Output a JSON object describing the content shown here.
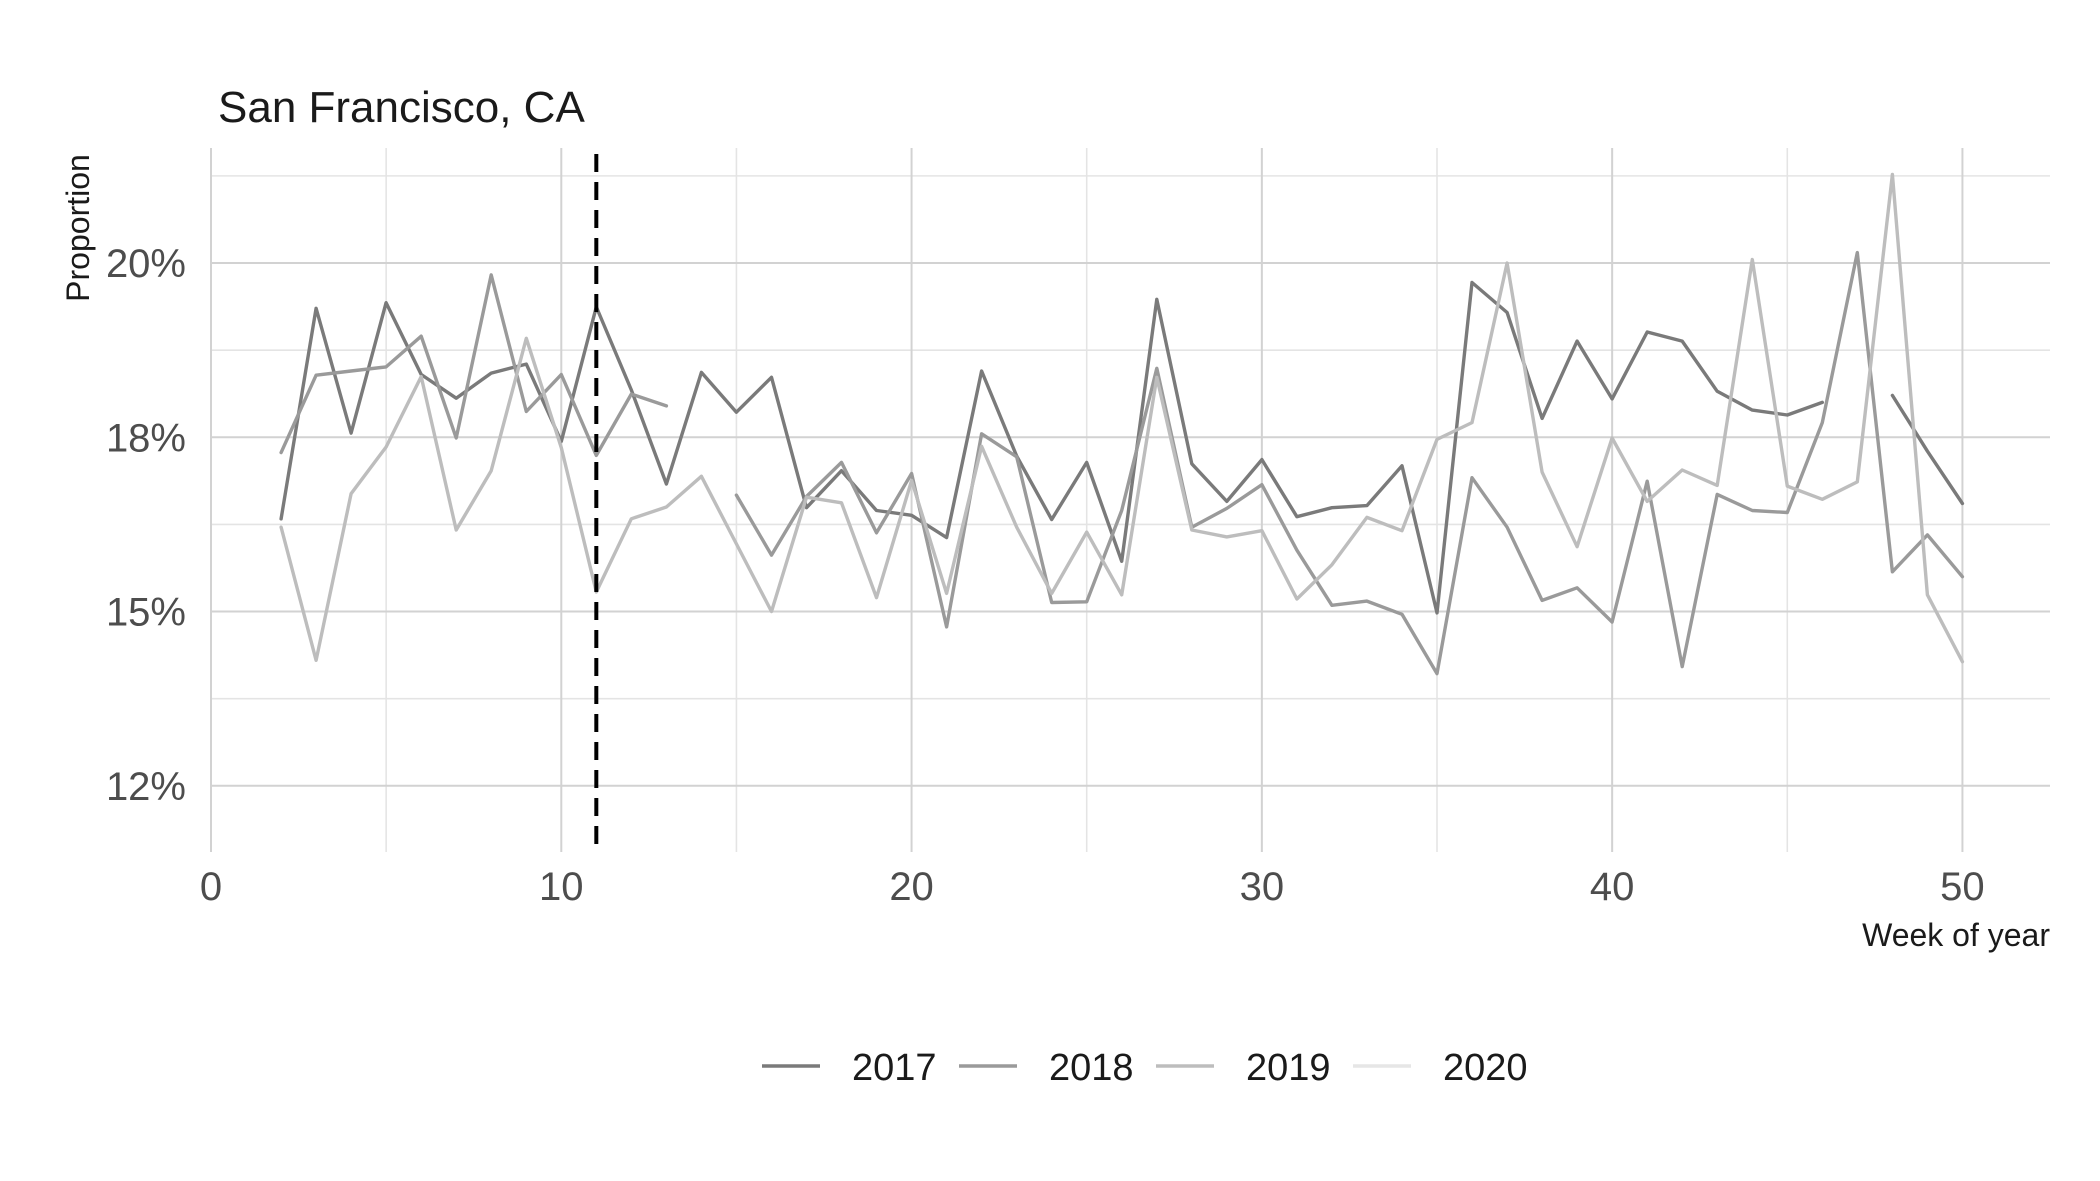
{
  "chart_data": {
    "type": "line",
    "title": "San Francisco, CA",
    "xlabel": "Week of year",
    "ylabel": "Proportion",
    "xlim": [
      0,
      52.5
    ],
    "ylim": [
      0.1155,
      0.2165
    ],
    "x_ticks": [
      0,
      10,
      20,
      30,
      40,
      50
    ],
    "x_tick_labels": [
      "0",
      "10",
      "20",
      "30",
      "40",
      "50"
    ],
    "y_ticks": [
      0.125,
      0.15,
      0.175,
      0.2
    ],
    "y_tick_labels": [
      "12%",
      "15%",
      "18%",
      "20%"
    ],
    "grid": true,
    "vline_x": 11,
    "legend_position": "bottom",
    "series": [
      {
        "name": "2017",
        "color": "#7a7a7a",
        "points": [
          [
            2,
            0.1633
          ],
          [
            3,
            0.1935
          ],
          [
            4,
            0.1756
          ],
          [
            5,
            0.1943
          ],
          [
            6,
            0.184
          ],
          [
            7,
            0.1806
          ],
          [
            8,
            0.1842
          ],
          [
            9,
            0.1855
          ],
          [
            10,
            0.1744
          ],
          [
            11,
            0.1937
          ],
          [
            12,
            0.1818
          ],
          [
            13,
            0.1683
          ],
          [
            14,
            0.1843
          ],
          [
            15,
            0.1786
          ],
          [
            16,
            0.1836
          ],
          [
            17,
            0.1649
          ],
          [
            18,
            0.1702
          ],
          [
            19,
            0.1645
          ],
          [
            20,
            0.1638
          ],
          [
            21,
            0.1606
          ],
          [
            22,
            0.1845
          ],
          [
            23,
            0.1723
          ],
          [
            24,
            0.1632
          ],
          [
            25,
            0.1714
          ],
          [
            26,
            0.1572
          ],
          [
            27,
            0.1948
          ],
          [
            28,
            0.1712
          ],
          [
            29,
            0.1658
          ],
          [
            30,
            0.1718
          ],
          [
            31,
            0.1636
          ],
          [
            32,
            0.1649
          ],
          [
            33,
            0.1652
          ],
          [
            34,
            0.1709
          ],
          [
            35,
            0.1498
          ],
          [
            36,
            0.1972
          ],
          [
            37,
            0.1929
          ],
          [
            38,
            0.1777
          ],
          [
            39,
            0.1888
          ],
          [
            40,
            0.1805
          ],
          [
            41,
            0.1901
          ],
          [
            42,
            0.1888
          ],
          [
            43,
            0.1816
          ],
          [
            44,
            0.1789
          ],
          [
            45,
            0.1782
          ],
          [
            46,
            0.18
          ],
          null,
          [
            48,
            0.181
          ],
          [
            49,
            0.173
          ],
          [
            50,
            0.1655
          ]
        ]
      },
      {
        "name": "2018",
        "color": "#9a9a9a",
        "points": [
          [
            2,
            0.1728
          ],
          [
            3,
            0.1839
          ],
          [
            4,
            0.1845
          ],
          [
            5,
            0.1851
          ],
          [
            6,
            0.1895
          ],
          [
            7,
            0.1749
          ],
          [
            8,
            0.1983
          ],
          [
            9,
            0.1787
          ],
          [
            10,
            0.184
          ],
          [
            11,
            0.1724
          ],
          [
            12,
            0.1812
          ],
          [
            13,
            0.1795
          ],
          null,
          [
            15,
            0.1667
          ],
          [
            16,
            0.1581
          ],
          [
            17,
            0.1665
          ],
          [
            18,
            0.1714
          ],
          [
            19,
            0.1613
          ],
          [
            20,
            0.1698
          ],
          [
            21,
            0.1478
          ],
          [
            22,
            0.1755
          ],
          [
            23,
            0.1722
          ],
          [
            24,
            0.1513
          ],
          [
            25,
            0.1514
          ],
          [
            26,
            0.1645
          ],
          [
            27,
            0.1849
          ],
          [
            28,
            0.1621
          ],
          [
            29,
            0.1648
          ],
          [
            30,
            0.1682
          ],
          [
            31,
            0.1588
          ],
          [
            32,
            0.1509
          ],
          [
            33,
            0.1515
          ],
          [
            34,
            0.1496
          ],
          [
            35,
            0.1411
          ],
          [
            36,
            0.1692
          ],
          [
            37,
            0.1621
          ],
          [
            38,
            0.1516
          ],
          [
            39,
            0.1534
          ],
          [
            40,
            0.1485
          ],
          [
            41,
            0.1687
          ],
          [
            42,
            0.1421
          ],
          [
            43,
            0.1668
          ],
          [
            44,
            0.1645
          ],
          [
            45,
            0.1642
          ],
          [
            46,
            0.1771
          ],
          [
            47,
            0.2015
          ],
          [
            48,
            0.1557
          ],
          [
            49,
            0.161
          ],
          [
            50,
            0.155
          ]
        ]
      },
      {
        "name": "2019",
        "color": "#bdbdbd",
        "points": [
          [
            2,
            0.1621
          ],
          [
            3,
            0.143
          ],
          [
            4,
            0.1669
          ],
          [
            5,
            0.1736
          ],
          [
            6,
            0.1837
          ],
          [
            7,
            0.1617
          ],
          [
            8,
            0.1702
          ],
          [
            9,
            0.1892
          ],
          [
            10,
            0.1735
          ],
          [
            11,
            0.1528
          ],
          [
            12,
            0.1633
          ],
          [
            13,
            0.165
          ],
          [
            14,
            0.1694
          ],
          [
            15,
            0.1597
          ],
          [
            16,
            0.15
          ],
          [
            17,
            0.1664
          ],
          [
            18,
            0.1656
          ],
          [
            19,
            0.152
          ],
          [
            20,
            0.1688
          ],
          [
            21,
            0.1526
          ],
          [
            22,
            0.1737
          ],
          [
            23,
            0.1621
          ],
          [
            24,
            0.1526
          ],
          [
            25,
            0.1614
          ],
          [
            26,
            0.1524
          ],
          [
            27,
            0.1836
          ],
          [
            28,
            0.1617
          ],
          [
            29,
            0.1607
          ],
          [
            30,
            0.1616
          ],
          [
            31,
            0.1518
          ],
          [
            32,
            0.1567
          ],
          [
            33,
            0.1635
          ],
          [
            34,
            0.1616
          ],
          [
            35,
            0.1747
          ],
          [
            36,
            0.1771
          ],
          [
            37,
            0.2
          ],
          [
            38,
            0.17
          ],
          [
            39,
            0.1593
          ],
          [
            40,
            0.1749
          ],
          [
            41,
            0.1658
          ],
          [
            42,
            0.1703
          ],
          [
            43,
            0.1681
          ],
          [
            44,
            0.2005
          ],
          [
            45,
            0.168
          ],
          [
            46,
            0.1661
          ],
          [
            47,
            0.1686
          ],
          [
            48,
            0.2127
          ],
          [
            49,
            0.1524
          ],
          [
            50,
            0.1428
          ]
        ]
      },
      {
        "name": "2020",
        "color": "#e6e6e6",
        "points": []
      }
    ]
  }
}
